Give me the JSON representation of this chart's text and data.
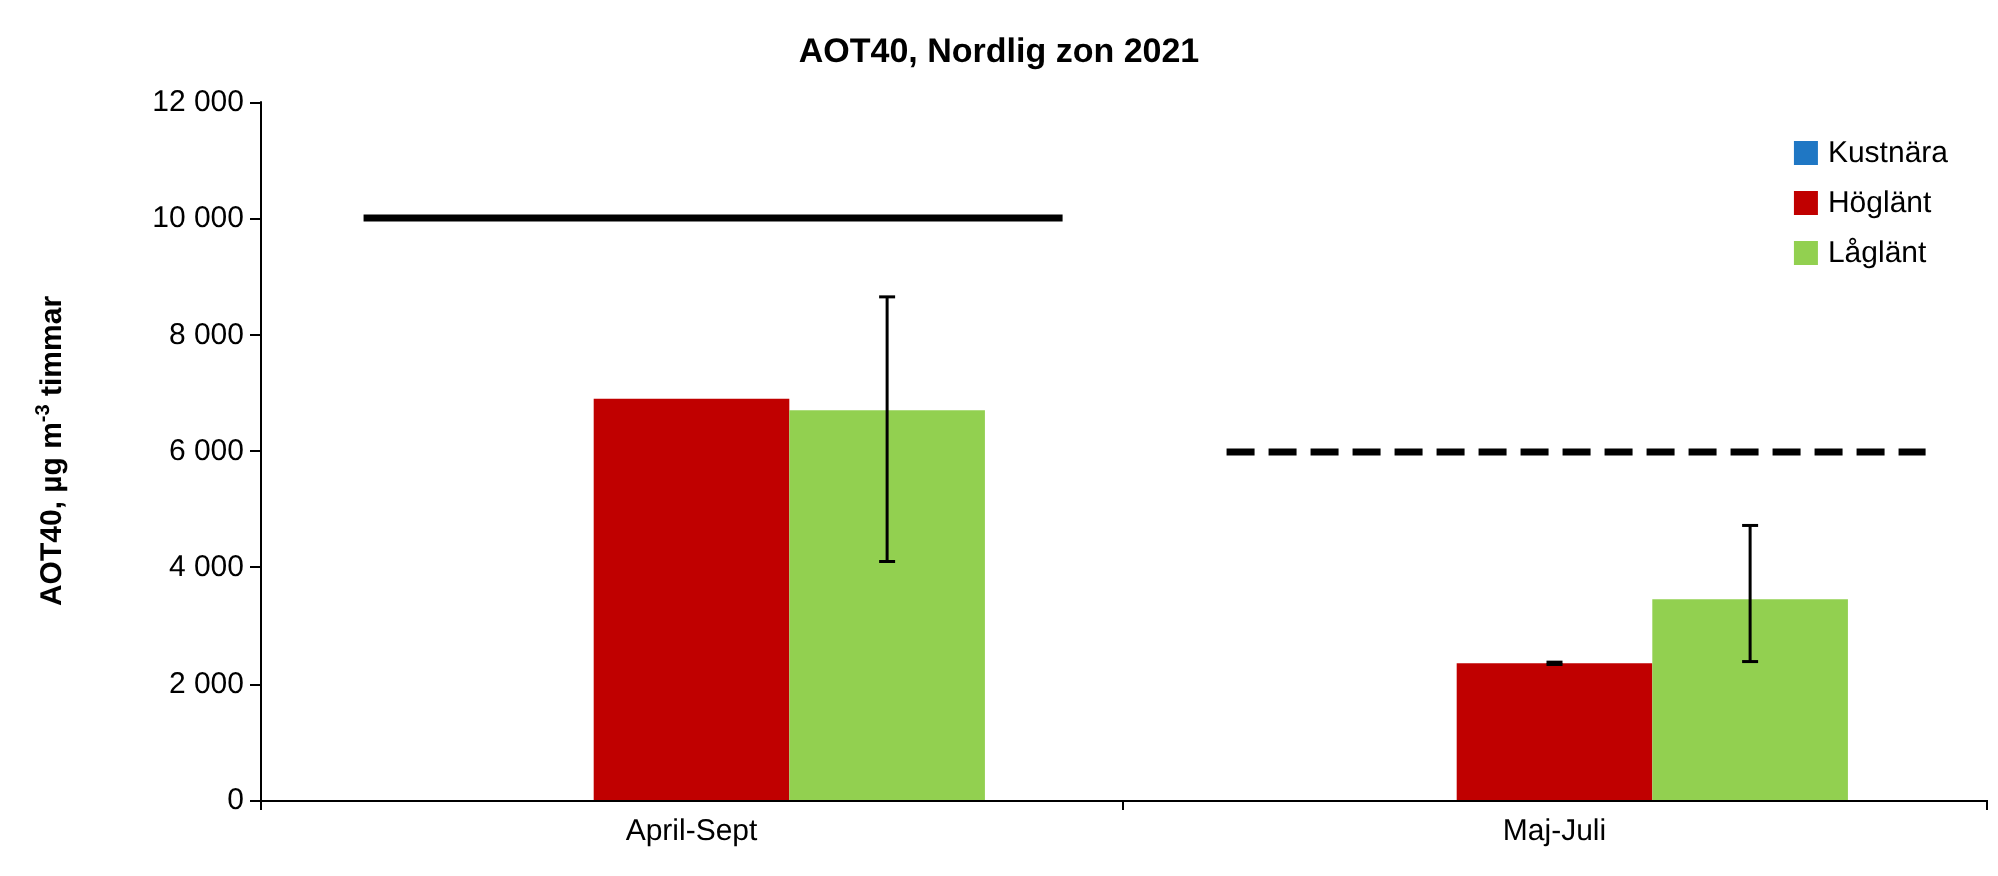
{
  "chart_data": {
    "type": "bar",
    "title": "AOT40, Nordlig zon 2021",
    "ylabel": "AOT40, µg m$^{-3}$ timmar",
    "categories": [
      "April-Sept",
      "Maj-Juli"
    ],
    "series": [
      {
        "name": "Kustnära",
        "color": "#1f77c4",
        "values": [
          null,
          null
        ]
      },
      {
        "name": "Höglänt",
        "color": "#c00000",
        "values": [
          6900,
          2350
        ],
        "errors": [
          null,
          [
            2330,
            2370
          ]
        ]
      },
      {
        "name": "Låglänt",
        "color": "#92d050",
        "values": [
          6700,
          3450
        ],
        "errors": [
          [
            4100,
            8650
          ],
          [
            2380,
            4720
          ]
        ]
      }
    ],
    "ylim": [
      0,
      12000
    ],
    "yticks": [
      {
        "value": 0,
        "label": "0"
      },
      {
        "value": 2000,
        "label": "2 000"
      },
      {
        "value": 4000,
        "label": "4 000"
      },
      {
        "value": 6000,
        "label": "6 000"
      },
      {
        "value": 8000,
        "label": "8 000"
      },
      {
        "value": 10000,
        "label": "10 000"
      },
      {
        "value": 12000,
        "label": "12 000"
      }
    ],
    "ref_lines": [
      {
        "axis": "y",
        "value": 10000,
        "color": "#000000",
        "line_style": "solid"
      },
      {
        "axis": "y",
        "value": 6000,
        "color": "#000000",
        "line_style": "dashed"
      }
    ],
    "grid": false,
    "legend": "top right"
  }
}
